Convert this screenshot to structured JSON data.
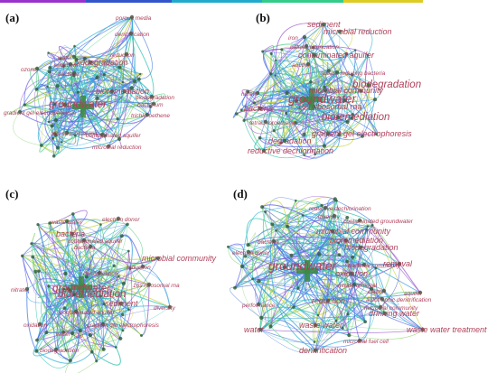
{
  "colors": {
    "label": "#b0405a",
    "timeline": [
      "#9933cc",
      "#3355cc",
      "#22aacc",
      "#33cc88",
      "#ddcc22"
    ]
  },
  "panels": [
    {
      "letter": "(a)",
      "terms": [
        {
          "text": "porous media",
          "size": "s"
        },
        {
          "text": "denitrification",
          "size": "s"
        },
        {
          "text": "biodegradation",
          "size": "m"
        },
        {
          "text": "reduction",
          "size": "s"
        },
        {
          "text": "water",
          "size": "s"
        },
        {
          "text": "sediment",
          "size": "s"
        },
        {
          "text": "bacteria",
          "size": "s"
        },
        {
          "text": "ozone",
          "size": "s"
        },
        {
          "text": "bioremediation",
          "size": "m"
        },
        {
          "text": "biodegradation",
          "size": "s"
        },
        {
          "text": "bacterium",
          "size": "s"
        },
        {
          "text": "groundwater",
          "size": "l"
        },
        {
          "text": "gradient gel electrophoresis",
          "size": "s"
        },
        {
          "text": "trichloroethene",
          "size": "s"
        },
        {
          "text": "16s ribosomal rna",
          "size": "s"
        },
        {
          "text": "contaminated aquifer",
          "size": "s"
        },
        {
          "text": "microbial reduction",
          "size": "s"
        }
      ]
    },
    {
      "letter": "(b)",
      "terms": [
        {
          "text": "sediment",
          "size": "m"
        },
        {
          "text": "microbial reduction",
          "size": "m"
        },
        {
          "text": "iron",
          "size": "s"
        },
        {
          "text": "natural attenuation",
          "size": "s"
        },
        {
          "text": "contaminated aquifer",
          "size": "m"
        },
        {
          "text": "aquifer",
          "size": "s"
        },
        {
          "text": "sulfate-reducing bacteria",
          "size": "s"
        },
        {
          "text": "biodegradation",
          "size": "l"
        },
        {
          "text": "microbial community",
          "size": "m"
        },
        {
          "text": "groundwater",
          "size": "xl"
        },
        {
          "text": "nitrate",
          "size": "s"
        },
        {
          "text": "bacteria",
          "size": "m"
        },
        {
          "text": "16s ribosomal rna",
          "size": "m"
        },
        {
          "text": "bioremediation",
          "size": "l"
        },
        {
          "text": "tetrachloroethene",
          "size": "s"
        },
        {
          "text": "gradient gel electrophoresis",
          "size": "m"
        },
        {
          "text": "degradation",
          "size": "m"
        },
        {
          "text": "reductive dechlorination",
          "size": "m"
        }
      ]
    },
    {
      "letter": "(c)",
      "terms": [
        {
          "text": "waste water",
          "size": "s"
        },
        {
          "text": "electron donor",
          "size": "s"
        },
        {
          "text": "bacteria",
          "size": "m"
        },
        {
          "text": "contaminated aquifer",
          "size": "s"
        },
        {
          "text": "bacteria",
          "size": "s"
        },
        {
          "text": "microbial community",
          "size": "m"
        },
        {
          "text": "reduction",
          "size": "s"
        },
        {
          "text": "denitrification",
          "size": "s"
        },
        {
          "text": "nitrate",
          "size": "s"
        },
        {
          "text": "groundwater",
          "size": "l"
        },
        {
          "text": "16s ribosomal rna",
          "size": "s"
        },
        {
          "text": "bioremediation",
          "size": "l"
        },
        {
          "text": "sediment",
          "size": "m"
        },
        {
          "text": "contaminated aquifer",
          "size": "s"
        },
        {
          "text": "diversity",
          "size": "s"
        },
        {
          "text": "oxidation",
          "size": "s"
        },
        {
          "text": "gradient gel electrophoresis",
          "size": "s"
        },
        {
          "text": "water",
          "size": "s"
        },
        {
          "text": "soil",
          "size": "s"
        },
        {
          "text": "biodegradation",
          "size": "s"
        }
      ]
    },
    {
      "letter": "(d)",
      "terms": [
        {
          "text": "reductive dechlorination",
          "size": "s"
        },
        {
          "text": "diversity",
          "size": "s"
        },
        {
          "text": "contaminated groundwater",
          "size": "s"
        },
        {
          "text": "microbial community",
          "size": "m"
        },
        {
          "text": "bioremediation",
          "size": "m"
        },
        {
          "text": "biodegradation",
          "size": "m"
        },
        {
          "text": "bacteria",
          "size": "s"
        },
        {
          "text": "electron donor",
          "size": "s"
        },
        {
          "text": "groundwater",
          "size": "xl"
        },
        {
          "text": "removal",
          "size": "m"
        },
        {
          "text": "bacterial community",
          "size": "s"
        },
        {
          "text": "oxidation",
          "size": "m"
        },
        {
          "text": "nitrate removal",
          "size": "s"
        },
        {
          "text": "carbon",
          "size": "s"
        },
        {
          "text": "aquifer",
          "size": "s"
        },
        {
          "text": "autotrophic denitrification",
          "size": "s"
        },
        {
          "text": "microbial community",
          "size": "s"
        },
        {
          "text": "reduction",
          "size": "m"
        },
        {
          "text": "performance",
          "size": "s"
        },
        {
          "text": "drinking water",
          "size": "m"
        },
        {
          "text": "waste water",
          "size": "m"
        },
        {
          "text": "waste water treatment",
          "size": "m"
        },
        {
          "text": "water",
          "size": "m"
        },
        {
          "text": "microbial fuel cell",
          "size": "s"
        },
        {
          "text": "denitrification",
          "size": "m"
        }
      ]
    }
  ]
}
